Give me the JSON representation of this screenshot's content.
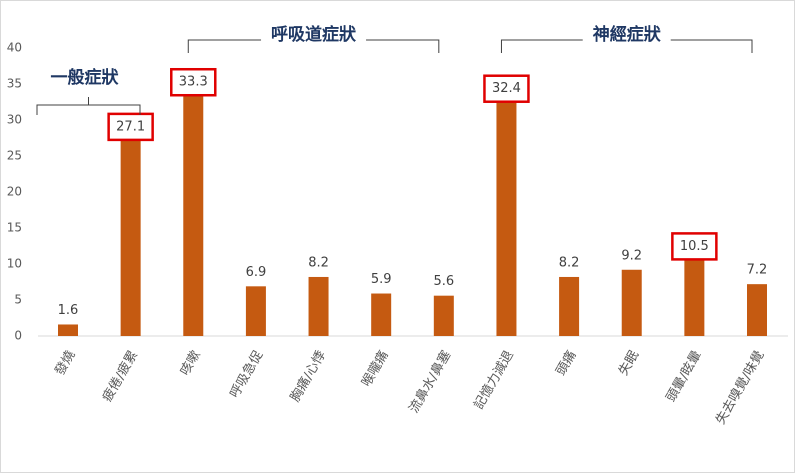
{
  "chart_data": {
    "type": "bar",
    "categories": [
      "發燒",
      "疲倦/疲累",
      "咳嗽",
      "呼吸急促",
      "胸痛/心悸",
      "喉嚨痛",
      "流鼻水/鼻塞",
      "記憶力減退",
      "頭痛",
      "失眠",
      "頭暈/眩暈",
      "失去嗅覺/味覺"
    ],
    "values": [
      1.6,
      27.1,
      33.3,
      6.9,
      8.2,
      5.9,
      5.6,
      32.4,
      8.2,
      9.2,
      10.5,
      7.2
    ],
    "color": "#c55a11",
    "ylim": [
      0,
      40
    ],
    "yticks": [
      0,
      5,
      10,
      15,
      20,
      25,
      30,
      35,
      40
    ],
    "grid": false,
    "annotations": [
      "一般症狀",
      "呼吸道症狀",
      "神經症狀"
    ],
    "highlight": [
      1,
      2,
      7,
      10
    ],
    "highlight_color": "#e00000"
  }
}
